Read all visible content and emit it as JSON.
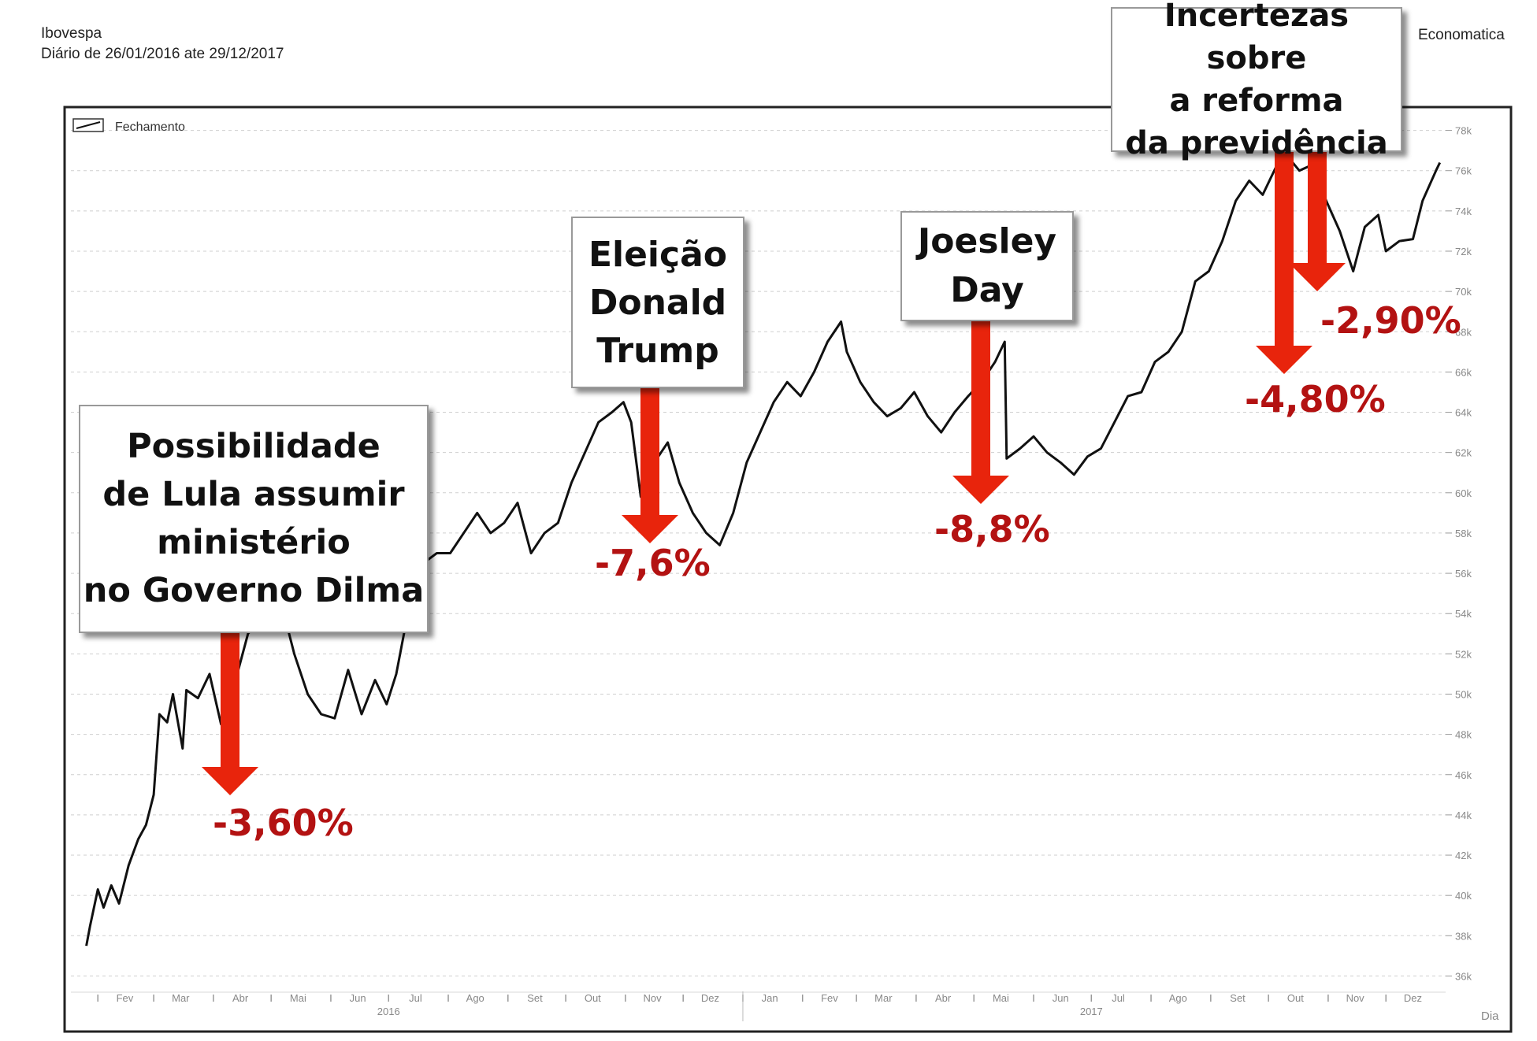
{
  "header": {
    "title": "Ibovespa",
    "subtitle": "Diário de 26/01/2016 ate 29/12/2017",
    "brand": "Economatica"
  },
  "colors": {
    "line": "#111111",
    "arrow": "#e8240c",
    "pct_text": "#b31212"
  },
  "chart_data": {
    "type": "line",
    "legend": "Fechamento",
    "legend_position": "top-left",
    "xlabel": "Dia",
    "ylim": [
      35000,
      79000
    ],
    "y_ticks": [
      36000,
      38000,
      40000,
      42000,
      44000,
      46000,
      48000,
      50000,
      52000,
      54000,
      56000,
      58000,
      60000,
      62000,
      64000,
      66000,
      68000,
      70000,
      72000,
      74000,
      76000,
      78000
    ],
    "y_tick_labels": [
      "36k",
      "38k",
      "40k",
      "42k",
      "44k",
      "46k",
      "48k",
      "50k",
      "52k",
      "54k",
      "56k",
      "58k",
      "60k",
      "62k",
      "64k",
      "66k",
      "68k",
      "70k",
      "72k",
      "74k",
      "76k",
      "78k"
    ],
    "month_labels": [
      "Fev",
      "Mar",
      "Abr",
      "Mai",
      "Jun",
      "Jul",
      "Ago",
      "Set",
      "Out",
      "Nov",
      "Dez",
      "Jan",
      "Fev",
      "Mar",
      "Abr",
      "Mai",
      "Jun",
      "Jul",
      "Ago",
      "Set",
      "Out",
      "Nov",
      "Dez"
    ],
    "year_labels": [
      "2016",
      "2017"
    ],
    "grid": true,
    "series": [
      {
        "name": "Fechamento",
        "values": [
          [
            "2016-01-26",
            37500
          ],
          [
            "2016-01-28",
            38500
          ],
          [
            "2016-02-01",
            40300
          ],
          [
            "2016-02-04",
            39400
          ],
          [
            "2016-02-08",
            40500
          ],
          [
            "2016-02-12",
            39600
          ],
          [
            "2016-02-17",
            41500
          ],
          [
            "2016-02-22",
            42800
          ],
          [
            "2016-02-26",
            43500
          ],
          [
            "2016-03-01",
            45000
          ],
          [
            "2016-03-04",
            49000
          ],
          [
            "2016-03-08",
            48600
          ],
          [
            "2016-03-11",
            50000
          ],
          [
            "2016-03-16",
            47300
          ],
          [
            "2016-03-18",
            50200
          ],
          [
            "2016-03-24",
            49800
          ],
          [
            "2016-03-30",
            51000
          ],
          [
            "2016-04-05",
            48500
          ],
          [
            "2016-04-12",
            50500
          ],
          [
            "2016-04-19",
            53000
          ],
          [
            "2016-04-26",
            53800
          ],
          [
            "2016-05-02",
            53100
          ],
          [
            "2016-05-09",
            53500
          ],
          [
            "2016-05-13",
            52000
          ],
          [
            "2016-05-20",
            50000
          ],
          [
            "2016-05-27",
            49000
          ],
          [
            "2016-06-03",
            48800
          ],
          [
            "2016-06-10",
            51200
          ],
          [
            "2016-06-17",
            49000
          ],
          [
            "2016-06-24",
            50700
          ],
          [
            "2016-06-30",
            49500
          ],
          [
            "2016-07-05",
            51000
          ],
          [
            "2016-07-12",
            54500
          ],
          [
            "2016-07-19",
            56500
          ],
          [
            "2016-07-26",
            57000
          ],
          [
            "2016-08-02",
            57000
          ],
          [
            "2016-08-09",
            58000
          ],
          [
            "2016-08-16",
            59000
          ],
          [
            "2016-08-23",
            58000
          ],
          [
            "2016-08-30",
            58500
          ],
          [
            "2016-09-06",
            59500
          ],
          [
            "2016-09-13",
            57000
          ],
          [
            "2016-09-20",
            58000
          ],
          [
            "2016-09-27",
            58500
          ],
          [
            "2016-10-04",
            60500
          ],
          [
            "2016-10-11",
            62000
          ],
          [
            "2016-10-18",
            63500
          ],
          [
            "2016-10-25",
            64000
          ],
          [
            "2016-10-31",
            64500
          ],
          [
            "2016-11-04",
            63500
          ],
          [
            "2016-11-09",
            59800
          ],
          [
            "2016-11-16",
            61500
          ],
          [
            "2016-11-23",
            62500
          ],
          [
            "2016-11-29",
            60500
          ],
          [
            "2016-12-06",
            59000
          ],
          [
            "2016-12-13",
            58000
          ],
          [
            "2016-12-20",
            57400
          ],
          [
            "2016-12-27",
            59000
          ],
          [
            "2017-01-03",
            61500
          ],
          [
            "2017-01-10",
            63000
          ],
          [
            "2017-01-17",
            64500
          ],
          [
            "2017-01-24",
            65500
          ],
          [
            "2017-01-31",
            64800
          ],
          [
            "2017-02-07",
            66000
          ],
          [
            "2017-02-14",
            67500
          ],
          [
            "2017-02-21",
            68500
          ],
          [
            "2017-02-24",
            67000
          ],
          [
            "2017-03-03",
            65500
          ],
          [
            "2017-03-10",
            64500
          ],
          [
            "2017-03-17",
            63800
          ],
          [
            "2017-03-24",
            64200
          ],
          [
            "2017-03-31",
            65000
          ],
          [
            "2017-04-07",
            63800
          ],
          [
            "2017-04-14",
            63000
          ],
          [
            "2017-04-21",
            64000
          ],
          [
            "2017-04-28",
            64800
          ],
          [
            "2017-05-05",
            65500
          ],
          [
            "2017-05-12",
            66500
          ],
          [
            "2017-05-17",
            67500
          ],
          [
            "2017-05-18",
            61700
          ],
          [
            "2017-05-25",
            62200
          ],
          [
            "2017-06-01",
            62800
          ],
          [
            "2017-06-08",
            62000
          ],
          [
            "2017-06-15",
            61500
          ],
          [
            "2017-06-22",
            60900
          ],
          [
            "2017-06-29",
            61800
          ],
          [
            "2017-07-06",
            62200
          ],
          [
            "2017-07-13",
            63500
          ],
          [
            "2017-07-20",
            64800
          ],
          [
            "2017-07-27",
            65000
          ],
          [
            "2017-08-03",
            66500
          ],
          [
            "2017-08-10",
            67000
          ],
          [
            "2017-08-17",
            68000
          ],
          [
            "2017-08-24",
            70500
          ],
          [
            "2017-08-31",
            71000
          ],
          [
            "2017-09-07",
            72500
          ],
          [
            "2017-09-14",
            74500
          ],
          [
            "2017-09-21",
            75500
          ],
          [
            "2017-09-28",
            74800
          ],
          [
            "2017-10-05",
            76200
          ],
          [
            "2017-10-11",
            76700
          ],
          [
            "2017-10-17",
            76000
          ],
          [
            "2017-10-24",
            76300
          ],
          [
            "2017-10-31",
            74500
          ],
          [
            "2017-11-07",
            73000
          ],
          [
            "2017-11-14",
            71000
          ],
          [
            "2017-11-20",
            73200
          ],
          [
            "2017-11-27",
            73800
          ],
          [
            "2017-12-01",
            72000
          ],
          [
            "2017-12-08",
            72500
          ],
          [
            "2017-12-15",
            72600
          ],
          [
            "2017-12-20",
            74500
          ],
          [
            "2017-12-27",
            76000
          ],
          [
            "2017-12-29",
            76400
          ]
        ]
      }
    ]
  },
  "events": [
    {
      "label_lines": [
        "Possibilidade",
        "de Lula assumir",
        "ministério",
        "no Governo Dilma"
      ],
      "pct": "-3,60%"
    },
    {
      "label_lines": [
        "Eleição",
        "Donald",
        "Trump"
      ],
      "pct": "-7,6%"
    },
    {
      "label_lines": [
        "Joesley",
        "Day"
      ],
      "pct": "-8,8%"
    },
    {
      "label_lines": [
        "Incertezas sobre",
        "a reforma",
        "da previdência"
      ],
      "pct": "-4,80%"
    },
    {
      "label_lines": [],
      "pct": "-2,90%"
    }
  ]
}
